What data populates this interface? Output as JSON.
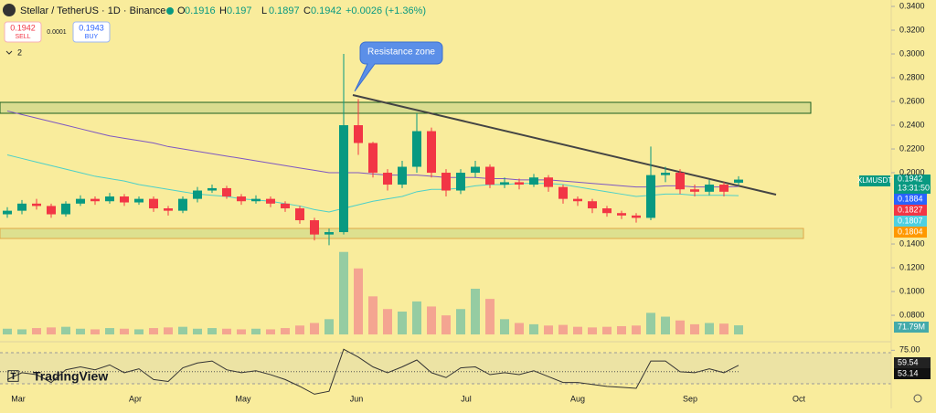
{
  "chart_data": {
    "type": "candlestick",
    "title": "Stellar / TetherUS · 1D · Binance",
    "ohlc": [
      {
        "label": "O",
        "value": 0.1916
      },
      {
        "label": "H",
        "value": 0.197
      },
      {
        "label": "L",
        "value": 0.1897
      },
      {
        "label": "C",
        "value": 0.1942
      }
    ],
    "change": "+0.0026 (+1.36%)",
    "sell": {
      "price": 0.1942,
      "label": "SELL"
    },
    "spread": 0.0001,
    "buy": {
      "price": 0.1943,
      "label": "BUY"
    },
    "indicator_count": 2,
    "annotation": "Resistance zone",
    "symbol": "XLMUSDT",
    "countdown": "13:31:50",
    "x_labels": [
      "Mar",
      "Apr",
      "May",
      "Jun",
      "Jul",
      "Aug",
      "Sep",
      "Oct"
    ],
    "open": [
      0.165,
      0.168,
      0.174,
      0.172,
      0.165,
      0.174,
      0.178,
      0.176,
      0.18,
      0.175,
      0.178,
      0.17,
      0.168,
      0.178,
      0.185,
      0.187,
      0.18,
      0.176,
      0.178,
      0.174,
      0.17,
      0.16,
      0.148,
      0.15,
      0.24,
      0.225,
      0.2,
      0.19,
      0.205,
      0.235,
      0.2,
      0.185,
      0.2,
      0.205,
      0.19,
      0.192,
      0.19,
      0.196,
      0.188,
      0.178,
      0.176,
      0.17,
      0.166,
      0.164,
      0.162,
      0.198,
      0.2,
      0.186,
      0.184,
      0.19,
      0.1916
    ],
    "high": [
      0.171,
      0.177,
      0.178,
      0.174,
      0.176,
      0.181,
      0.18,
      0.183,
      0.182,
      0.18,
      0.18,
      0.172,
      0.18,
      0.188,
      0.19,
      0.189,
      0.182,
      0.181,
      0.18,
      0.176,
      0.172,
      0.162,
      0.153,
      0.3,
      0.262,
      0.226,
      0.203,
      0.21,
      0.25,
      0.238,
      0.203,
      0.203,
      0.21,
      0.207,
      0.196,
      0.195,
      0.199,
      0.198,
      0.19,
      0.18,
      0.178,
      0.172,
      0.168,
      0.166,
      0.222,
      0.205,
      0.203,
      0.19,
      0.194,
      0.192,
      0.197
    ],
    "low": [
      0.162,
      0.165,
      0.169,
      0.162,
      0.163,
      0.172,
      0.173,
      0.174,
      0.172,
      0.173,
      0.167,
      0.164,
      0.166,
      0.175,
      0.183,
      0.178,
      0.173,
      0.174,
      0.171,
      0.167,
      0.157,
      0.143,
      0.139,
      0.148,
      0.215,
      0.196,
      0.185,
      0.187,
      0.2,
      0.196,
      0.18,
      0.182,
      0.196,
      0.187,
      0.187,
      0.186,
      0.188,
      0.184,
      0.174,
      0.172,
      0.166,
      0.163,
      0.161,
      0.158,
      0.16,
      0.192,
      0.182,
      0.18,
      0.181,
      0.18,
      0.1897
    ],
    "close": [
      0.168,
      0.174,
      0.172,
      0.165,
      0.174,
      0.178,
      0.176,
      0.18,
      0.175,
      0.178,
      0.17,
      0.168,
      0.178,
      0.185,
      0.187,
      0.18,
      0.176,
      0.178,
      0.174,
      0.17,
      0.16,
      0.148,
      0.15,
      0.24,
      0.225,
      0.2,
      0.19,
      0.205,
      0.235,
      0.2,
      0.185,
      0.2,
      0.205,
      0.19,
      0.192,
      0.19,
      0.196,
      0.188,
      0.178,
      0.176,
      0.17,
      0.166,
      0.164,
      0.162,
      0.198,
      0.2,
      0.186,
      0.184,
      0.19,
      0.184,
      0.1942
    ],
    "ma_lines": [
      {
        "color": "#7e57c2",
        "values": [
          0.252,
          0.249,
          0.246,
          0.243,
          0.24,
          0.237,
          0.234,
          0.231,
          0.229,
          0.227,
          0.225,
          0.222,
          0.22,
          0.218,
          0.216,
          0.214,
          0.212,
          0.21,
          0.208,
          0.206,
          0.204,
          0.202,
          0.2,
          0.2,
          0.2,
          0.199,
          0.198,
          0.198,
          0.198,
          0.197,
          0.196,
          0.196,
          0.196,
          0.195,
          0.195,
          0.194,
          0.194,
          0.194,
          0.193,
          0.192,
          0.191,
          0.19,
          0.189,
          0.188,
          0.188,
          0.189,
          0.189,
          0.188,
          0.188,
          0.188,
          0.1884
        ]
      },
      {
        "color": "#4dd0c8",
        "values": [
          0.215,
          0.212,
          0.209,
          0.206,
          0.203,
          0.2,
          0.197,
          0.195,
          0.193,
          0.19,
          0.188,
          0.186,
          0.184,
          0.182,
          0.181,
          0.18,
          0.178,
          0.177,
          0.176,
          0.174,
          0.172,
          0.169,
          0.167,
          0.17,
          0.173,
          0.176,
          0.178,
          0.18,
          0.184,
          0.186,
          0.186,
          0.187,
          0.189,
          0.19,
          0.19,
          0.191,
          0.191,
          0.191,
          0.19,
          0.188,
          0.186,
          0.184,
          0.182,
          0.18,
          0.181,
          0.182,
          0.182,
          0.181,
          0.181,
          0.181,
          0.1807
        ]
      }
    ],
    "price_labels": [
      {
        "value": 0.1884,
        "color": "#2962ff"
      },
      {
        "value": 0.1827,
        "color": "#f23645"
      },
      {
        "value": 0.1807,
        "color": "#4dd0e1"
      },
      {
        "value": 0.1804,
        "color": "#ff9800"
      }
    ],
    "ylim": [
      0.0608,
      0.3454
    ],
    "yticks": [
      {
        "value": 0.34,
        "label": "0.3400"
      },
      {
        "value": 0.32,
        "label": "0.3200"
      },
      {
        "value": 0.3,
        "label": "0.3000"
      },
      {
        "value": 0.28,
        "label": "0.2800"
      },
      {
        "value": 0.26,
        "label": "0.2600"
      },
      {
        "value": 0.24,
        "label": "0.2400"
      },
      {
        "value": 0.22,
        "label": "0.2200"
      },
      {
        "value": 0.2,
        "label": "0.2000"
      },
      {
        "value": 0.14,
        "label": "0.1400"
      },
      {
        "value": 0.12,
        "label": "0.1200"
      },
      {
        "value": 0.1,
        "label": "0.1000"
      },
      {
        "value": 0.08,
        "label": "0.0800"
      }
    ],
    "volume": [
      45,
      40,
      50,
      55,
      60,
      45,
      40,
      50,
      45,
      40,
      50,
      55,
      60,
      45,
      50,
      45,
      40,
      45,
      40,
      50,
      70,
      90,
      120,
      650,
      520,
      300,
      200,
      180,
      260,
      220,
      150,
      200,
      360,
      280,
      120,
      90,
      80,
      70,
      75,
      60,
      55,
      60,
      65,
      70,
      170,
      140,
      110,
      80,
      90,
      85,
      71.79
    ],
    "volume_label": "71.79M",
    "volume_lim": [
      0,
      720
    ],
    "rsi": [
      45,
      52,
      50,
      42,
      55,
      58,
      55,
      60,
      52,
      56,
      45,
      43,
      57,
      62,
      64,
      55,
      52,
      54,
      50,
      45,
      38,
      30,
      33,
      76,
      68,
      58,
      52,
      58,
      65,
      52,
      47,
      57,
      58,
      50,
      52,
      50,
      54,
      48,
      42,
      42,
      40,
      38,
      37,
      36,
      64,
      64,
      53,
      52,
      56,
      52,
      59.54
    ],
    "rsi_lim": [
      36,
      80
    ],
    "rsi_ticks": [
      {
        "value": 75,
        "label": "75.00"
      }
    ],
    "rsi_ma": 53.14,
    "brand": "TradingView"
  }
}
